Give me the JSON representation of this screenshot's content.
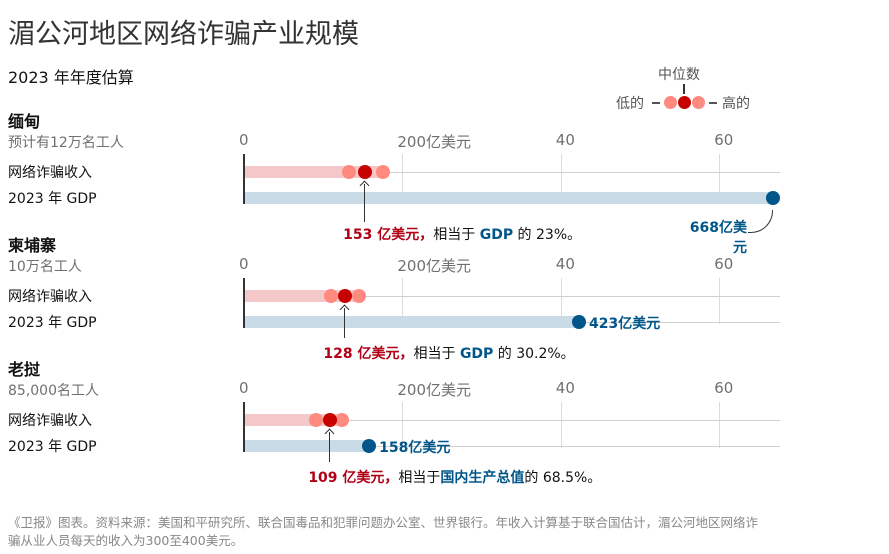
{
  "chart_data": {
    "type": "dot-range",
    "title": "湄公河地区网络诈骗产业规模",
    "subtitle": "2023 年年度估算",
    "unit": "10亿美元",
    "xlim": [
      0,
      68
    ],
    "ticks": [
      {
        "v": 0,
        "label": "0"
      },
      {
        "v": 20,
        "label": "200亿美元"
      },
      {
        "v": 40,
        "label": "40"
      },
      {
        "v": 60,
        "label": "60"
      }
    ],
    "legend": {
      "median": "中位数",
      "low": "低的",
      "high": "高的"
    },
    "row_labels": {
      "scam": "网络诈骗收入",
      "gdp": "2023 年 GDP"
    },
    "countries": [
      {
        "name": "缅甸",
        "workers": "预计有12万名工人",
        "low": 13.3,
        "median": 15.3,
        "high": 17.5,
        "gdp": 66.8,
        "gdp_label": "668亿美元",
        "ann_value": "153 亿美元，",
        "ann_mid": "相当于 ",
        "ann_gdp": "GDP",
        "ann_end": " 的 23%。"
      },
      {
        "name": "柬埔寨",
        "workers": "10万名工人",
        "low": 11.0,
        "median": 12.8,
        "high": 14.5,
        "gdp": 42.3,
        "gdp_label": "423亿美元",
        "ann_value": "128 亿美元，",
        "ann_mid": "相当于 ",
        "ann_gdp": "GDP",
        "ann_end": " 的 30.2%。"
      },
      {
        "name": "老挝",
        "workers": "85,000名工人",
        "low": 9.1,
        "median": 10.9,
        "high": 12.4,
        "gdp": 15.8,
        "gdp_label": "158亿美元",
        "ann_value": "109 亿美元，",
        "ann_mid": "相当于",
        "ann_gdp": "国内生产总值",
        "ann_end": "的 68.5%。"
      }
    ],
    "colors": {
      "median": "#c70000",
      "range": "#ff8a80",
      "band": "#f4c7c9",
      "gdp": "#005689",
      "gdpband": "#c9dbe6"
    }
  },
  "footer": "《卫报》图表。资料来源：美国和平研究所、联合国毒品和犯罪问题办公室、世界银行。年收入计算基于联合国估计，湄公河地区网络诈骗从业人员每天的收入为300至400美元。"
}
